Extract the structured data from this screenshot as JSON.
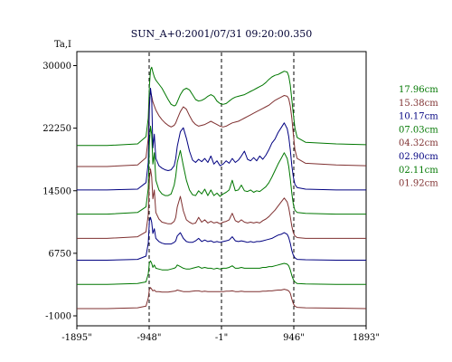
{
  "chart_data": {
    "type": "line",
    "title": "SUN_A+0:2001/07/31 09:20:00.350",
    "ylabel": "Ta,I",
    "xlabel": "",
    "xlim": [
      -1895,
      1893
    ],
    "ylim": [
      -1000,
      34500
    ],
    "xticks": [
      "-1895\"",
      "-948\"",
      "-1\"",
      "946\"",
      "1893\""
    ],
    "xtick_values": [
      -1895,
      -948,
      -1,
      946,
      1893
    ],
    "yticks": [
      "30000",
      "22250",
      "14500",
      "6750",
      "-1000"
    ],
    "ytick_values": [
      30000,
      22250,
      14500,
      6750,
      -1000
    ],
    "vlines": [
      -948,
      -1,
      946
    ],
    "grid": false,
    "legend_position": "right",
    "x": [
      -1895,
      -1500,
      -1100,
      -990,
      -960,
      -945,
      -930,
      -915,
      -900,
      -880,
      -860,
      -820,
      -780,
      -740,
      -700,
      -660,
      -620,
      -600,
      -580,
      -540,
      -500,
      -460,
      -420,
      -380,
      -340,
      -300,
      -260,
      -220,
      -180,
      -140,
      -100,
      -60,
      -20,
      20,
      60,
      100,
      140,
      180,
      220,
      260,
      300,
      340,
      380,
      420,
      460,
      500,
      540,
      580,
      620,
      660,
      700,
      740,
      780,
      820,
      860,
      880,
      900,
      920,
      940,
      960,
      990,
      1100,
      1500,
      1893
    ],
    "series": [
      {
        "name": "17.96cm",
        "color": "#007700",
        "values": [
          20100,
          20100,
          20300,
          21200,
          23500,
          27500,
          29500,
          29800,
          29200,
          28600,
          28200,
          27700,
          27200,
          26500,
          25800,
          25200,
          25000,
          25100,
          25500,
          26400,
          27000,
          27200,
          27000,
          26400,
          25800,
          25600,
          25700,
          25900,
          26200,
          26400,
          26200,
          25600,
          25300,
          25200,
          25300,
          25600,
          25900,
          26100,
          26200,
          26300,
          26400,
          26600,
          26800,
          27000,
          27200,
          27400,
          27600,
          27900,
          28300,
          28600,
          28800,
          28900,
          29100,
          29300,
          29200,
          28700,
          27600,
          25800,
          24000,
          22300,
          21100,
          20500,
          20300,
          20200
        ]
      },
      {
        "name": "15.38cm",
        "color": "#7f3030",
        "values": [
          17500,
          17500,
          17700,
          18600,
          21000,
          25500,
          26800,
          26200,
          25500,
          25000,
          24500,
          23800,
          23300,
          22900,
          22600,
          22400,
          22600,
          22900,
          23400,
          24300,
          24900,
          24600,
          23800,
          23100,
          22700,
          22500,
          22600,
          22700,
          22900,
          23100,
          22900,
          22700,
          22500,
          22400,
          22500,
          22700,
          22900,
          23000,
          23100,
          23300,
          23500,
          23700,
          23900,
          24100,
          24300,
          24500,
          24700,
          24900,
          25100,
          25400,
          25700,
          25900,
          26100,
          26300,
          26200,
          25900,
          25000,
          23500,
          21500,
          19600,
          18500,
          17900,
          17700,
          17600
        ]
      },
      {
        "name": "10.17cm",
        "color": "#000080",
        "values": [
          14600,
          14600,
          14700,
          15500,
          18000,
          25000,
          27200,
          26000,
          19800,
          21500,
          18500,
          17600,
          17300,
          17100,
          17000,
          17100,
          17600,
          18500,
          20000,
          21800,
          22300,
          21000,
          19400,
          18300,
          18000,
          18400,
          18100,
          18500,
          18000,
          18800,
          17800,
          18200,
          17600,
          17800,
          18200,
          17900,
          18500,
          18000,
          18300,
          18800,
          19400,
          18400,
          18200,
          18600,
          18200,
          18800,
          18400,
          18900,
          19600,
          20400,
          20900,
          21700,
          22300,
          22900,
          22200,
          21200,
          19600,
          17600,
          16200,
          15300,
          14900,
          14700,
          14600,
          14600
        ]
      },
      {
        "name": "07.03cm",
        "color": "#007700",
        "values": [
          11600,
          11600,
          11800,
          12500,
          14800,
          20500,
          22500,
          21500,
          17800,
          19200,
          15800,
          14600,
          14100,
          13900,
          13900,
          14100,
          15200,
          16300,
          18000,
          19500,
          17600,
          15800,
          14600,
          14000,
          13900,
          14500,
          14100,
          14700,
          13900,
          14600,
          13900,
          14200,
          13800,
          14100,
          14300,
          14600,
          15800,
          14500,
          14600,
          15200,
          14500,
          14400,
          14600,
          14300,
          14500,
          14400,
          14700,
          15000,
          15500,
          16200,
          17000,
          17800,
          18500,
          19200,
          18500,
          17500,
          16000,
          14200,
          12800,
          12100,
          11800,
          11700,
          11600,
          11600
        ]
      },
      {
        "name": "04.32cm",
        "color": "#7f3030",
        "values": [
          8600,
          8600,
          8800,
          9400,
          11500,
          16000,
          17200,
          16200,
          13500,
          14600,
          11800,
          11000,
          10600,
          10500,
          10400,
          10400,
          10700,
          11200,
          12500,
          13800,
          12000,
          10900,
          10600,
          10400,
          10500,
          11200,
          10600,
          10900,
          10500,
          10700,
          10500,
          10600,
          10400,
          10600,
          10700,
          10900,
          11700,
          10800,
          10600,
          10900,
          10600,
          10500,
          10600,
          10500,
          10600,
          10500,
          10800,
          11000,
          11300,
          11700,
          12100,
          12600,
          13100,
          13600,
          13100,
          12400,
          11300,
          10100,
          9300,
          8900,
          8700,
          8600,
          8600,
          8600
        ]
      },
      {
        "name": "02.90cm",
        "color": "#000080",
        "values": [
          5900,
          5900,
          6000,
          6400,
          8000,
          10800,
          11200,
          10600,
          9200,
          9800,
          8600,
          8200,
          8000,
          7900,
          7900,
          7900,
          8100,
          8300,
          8900,
          9300,
          8600,
          8200,
          8100,
          8100,
          8300,
          8600,
          8200,
          8400,
          8200,
          8300,
          8100,
          8200,
          8100,
          8200,
          8300,
          8400,
          8800,
          8300,
          8200,
          8300,
          8200,
          8100,
          8200,
          8100,
          8200,
          8200,
          8300,
          8400,
          8500,
          8600,
          8800,
          9000,
          9100,
          9300,
          9100,
          8700,
          8000,
          7100,
          6500,
          6200,
          6000,
          5950,
          5900,
          5900
        ]
      },
      {
        "name": "02.11cm",
        "color": "#007700",
        "values": [
          2900,
          2900,
          3000,
          3200,
          4200,
          5600,
          5800,
          5500,
          5000,
          5300,
          4900,
          4800,
          4700,
          4700,
          4700,
          4800,
          4900,
          5000,
          5300,
          5100,
          4900,
          4800,
          4800,
          4900,
          5000,
          5100,
          4900,
          5000,
          4900,
          4900,
          4800,
          4900,
          4800,
          4900,
          4900,
          5000,
          5200,
          4900,
          4900,
          5000,
          4900,
          4900,
          4900,
          4900,
          4900,
          4900,
          5000,
          5000,
          5100,
          5100,
          5200,
          5300,
          5400,
          5500,
          5400,
          5200,
          4700,
          4000,
          3500,
          3200,
          3000,
          2950,
          2900,
          2900
        ]
      },
      {
        "name": "01.92cm",
        "color": "#7f3030",
        "values": [
          -100,
          -100,
          0,
          200,
          1200,
          2300,
          2500,
          2300,
          2100,
          2200,
          2000,
          2000,
          1950,
          1950,
          1950,
          2000,
          2050,
          2100,
          2200,
          2100,
          2000,
          2000,
          2000,
          2050,
          2100,
          2100,
          2000,
          2050,
          2000,
          2000,
          2000,
          2000,
          2000,
          2000,
          2050,
          2050,
          2100,
          2000,
          2000,
          2050,
          2000,
          2000,
          2000,
          2000,
          2000,
          2000,
          2050,
          2050,
          2100,
          2100,
          2150,
          2200,
          2200,
          2300,
          2200,
          2100,
          1800,
          1100,
          500,
          200,
          50,
          0,
          -50,
          -100
        ]
      }
    ]
  }
}
